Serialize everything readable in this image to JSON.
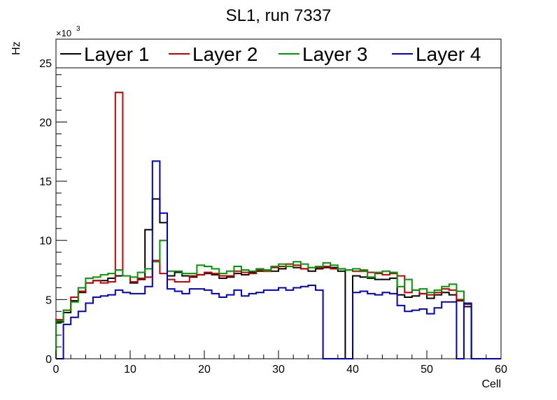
{
  "chart_data": {
    "type": "line",
    "style": "step-histogram",
    "title": "SL1, run 7337",
    "xlabel": "Cell",
    "ylabel": "Hz",
    "y_multiplier_label": "×10",
    "y_multiplier_exp": "3",
    "xlim": [
      0,
      60
    ],
    "ylim": [
      0,
      27000
    ],
    "x_ticks": [
      0,
      10,
      20,
      30,
      40,
      50,
      60
    ],
    "x_tick_labels": [
      "0",
      "10",
      "20",
      "30",
      "40",
      "50",
      "60"
    ],
    "y_ticks": [
      0,
      5000,
      10000,
      15000,
      20000,
      25000
    ],
    "y_tick_labels": [
      "0",
      "5",
      "10",
      "15",
      "20",
      "25"
    ],
    "bin_edges_start": 0,
    "bin_width": 1,
    "grid": false,
    "legend_position": "top",
    "series": [
      {
        "name": "Layer 1",
        "color": "#000000",
        "values": [
          3100,
          3900,
          4900,
          5600,
          6400,
          6600,
          6600,
          6800,
          7000,
          7000,
          6400,
          6700,
          10900,
          13500,
          11500,
          7000,
          7300,
          7000,
          6900,
          7100,
          7200,
          7100,
          6800,
          6900,
          7200,
          7100,
          7300,
          7400,
          7500,
          7400,
          7600,
          7800,
          7700,
          7600,
          7400,
          7600,
          7700,
          7700,
          7400,
          0,
          7000,
          6900,
          6800,
          6700,
          6700,
          6800,
          5400,
          5200,
          5300,
          5500,
          5100,
          5400,
          5600,
          5400,
          4900,
          4400,
          0,
          0,
          0,
          0
        ]
      },
      {
        "name": "Layer 2",
        "color": "#cc0000",
        "values": [
          3300,
          4100,
          5200,
          5700,
          6400,
          6600,
          6400,
          6500,
          22500,
          7000,
          6500,
          6800,
          6900,
          8300,
          7200,
          6700,
          6500,
          6500,
          7000,
          7100,
          7300,
          7200,
          7000,
          7000,
          7400,
          7300,
          7200,
          7500,
          7400,
          7700,
          7800,
          8000,
          7900,
          7600,
          7700,
          7700,
          7800,
          7600,
          7600,
          7500,
          7400,
          7400,
          7300,
          7200,
          7100,
          7200,
          7000,
          5600,
          5800,
          5500,
          5400,
          5600,
          5900,
          5800,
          5000,
          4600,
          0,
          0,
          0,
          0
        ]
      },
      {
        "name": "Layer 3",
        "color": "#009900",
        "values": [
          3200,
          4100,
          4800,
          6000,
          6800,
          6900,
          7100,
          7200,
          7500,
          7000,
          6900,
          7300,
          7600,
          8200,
          10000,
          7400,
          7400,
          7200,
          7200,
          7900,
          7800,
          7600,
          7200,
          7400,
          7800,
          7500,
          7400,
          7600,
          7500,
          7800,
          8000,
          7800,
          8200,
          8000,
          7700,
          7800,
          8100,
          7900,
          7600,
          7500,
          7600,
          7500,
          6900,
          7300,
          7400,
          7300,
          6100,
          6700,
          5800,
          5900,
          5600,
          5800,
          6100,
          6300,
          5700,
          4700,
          0,
          0,
          0,
          0
        ]
      },
      {
        "name": "Layer 4",
        "color": "#0000cc",
        "values": [
          0,
          2900,
          3500,
          4000,
          4700,
          5200,
          5300,
          5400,
          5800,
          5600,
          5500,
          5500,
          6100,
          16700,
          12300,
          5900,
          5700,
          5500,
          5900,
          5900,
          5800,
          5500,
          5200,
          5400,
          5800,
          5300,
          5500,
          5600,
          5800,
          5800,
          6000,
          5800,
          6000,
          6100,
          6200,
          5800,
          0,
          0,
          0,
          0,
          5600,
          5700,
          5500,
          5400,
          5600,
          5500,
          4500,
          4000,
          4100,
          4200,
          3800,
          4300,
          4800,
          4800,
          0,
          4700,
          0,
          0,
          0,
          0
        ]
      }
    ]
  }
}
